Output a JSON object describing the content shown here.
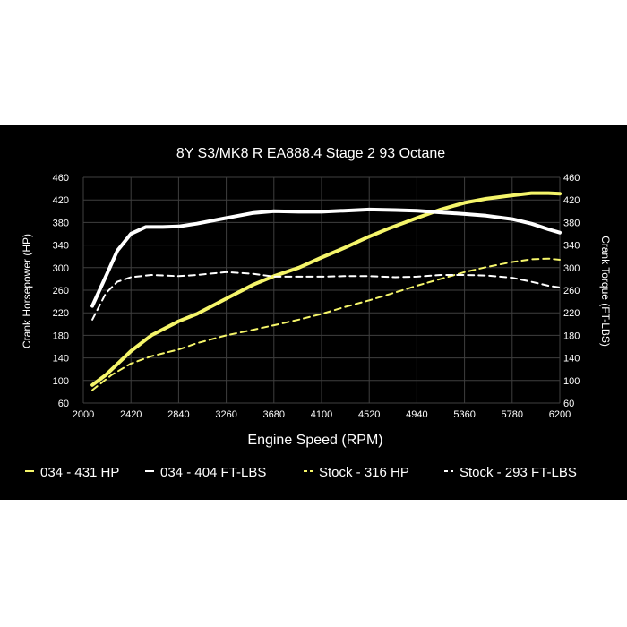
{
  "chart_data": {
    "type": "line",
    "title": "8Y S3/MK8 R EA888.4 Stage 2 93 Octane",
    "xlabel": "Engine Speed (RPM)",
    "ylabel_left": "Crank Horsepower (HP)",
    "ylabel_right": "Crank Torque (FT-LBS)",
    "xlim": [
      2000,
      6200
    ],
    "ylim": [
      60,
      460
    ],
    "x_ticks": [
      "2000",
      "2420",
      "2840",
      "3260",
      "3680",
      "4100",
      "4520",
      "4940",
      "5360",
      "5780",
      "6200"
    ],
    "y_ticks": [
      "60",
      "100",
      "140",
      "180",
      "220",
      "260",
      "300",
      "340",
      "380",
      "420",
      "460"
    ],
    "grid": true,
    "legend_position": "bottom",
    "series": [
      {
        "name": "034 - 431 HP",
        "color": "#f5f56a",
        "style": "solid",
        "points": [
          [
            2080,
            92
          ],
          [
            2200,
            110
          ],
          [
            2420,
            152
          ],
          [
            2600,
            180
          ],
          [
            2840,
            205
          ],
          [
            3000,
            218
          ],
          [
            3260,
            245
          ],
          [
            3500,
            270
          ],
          [
            3680,
            285
          ],
          [
            3900,
            300
          ],
          [
            4100,
            318
          ],
          [
            4300,
            335
          ],
          [
            4520,
            355
          ],
          [
            4700,
            370
          ],
          [
            4940,
            388
          ],
          [
            5150,
            403
          ],
          [
            5360,
            415
          ],
          [
            5550,
            422
          ],
          [
            5780,
            428
          ],
          [
            5950,
            432
          ],
          [
            6100,
            432
          ],
          [
            6200,
            431
          ]
        ]
      },
      {
        "name": "034 - 404 FT-LBS",
        "color": "#ffffff",
        "style": "solid",
        "points": [
          [
            2080,
            232
          ],
          [
            2200,
            285
          ],
          [
            2300,
            330
          ],
          [
            2420,
            360
          ],
          [
            2550,
            372
          ],
          [
            2700,
            372
          ],
          [
            2840,
            373
          ],
          [
            3000,
            378
          ],
          [
            3260,
            388
          ],
          [
            3500,
            397
          ],
          [
            3680,
            400
          ],
          [
            3900,
            399
          ],
          [
            4100,
            399
          ],
          [
            4300,
            401
          ],
          [
            4520,
            403
          ],
          [
            4750,
            402
          ],
          [
            4940,
            401
          ],
          [
            5150,
            398
          ],
          [
            5360,
            395
          ],
          [
            5550,
            392
          ],
          [
            5780,
            386
          ],
          [
            5950,
            378
          ],
          [
            6100,
            368
          ],
          [
            6200,
            362
          ]
        ]
      },
      {
        "name": "Stock - 316 HP",
        "color": "#f5f56a",
        "style": "dashed",
        "points": [
          [
            2080,
            83
          ],
          [
            2250,
            110
          ],
          [
            2420,
            130
          ],
          [
            2600,
            143
          ],
          [
            2840,
            155
          ],
          [
            3000,
            166
          ],
          [
            3260,
            180
          ],
          [
            3500,
            190
          ],
          [
            3680,
            198
          ],
          [
            3900,
            208
          ],
          [
            4100,
            218
          ],
          [
            4300,
            230
          ],
          [
            4520,
            242
          ],
          [
            4700,
            253
          ],
          [
            4940,
            268
          ],
          [
            5150,
            280
          ],
          [
            5360,
            292
          ],
          [
            5550,
            301
          ],
          [
            5780,
            310
          ],
          [
            5950,
            315
          ],
          [
            6100,
            316
          ],
          [
            6200,
            314
          ]
        ]
      },
      {
        "name": "Stock - 293 FT-LBS",
        "color": "#ffffff",
        "style": "dashed",
        "points": [
          [
            2080,
            208
          ],
          [
            2200,
            255
          ],
          [
            2300,
            275
          ],
          [
            2420,
            283
          ],
          [
            2600,
            287
          ],
          [
            2840,
            285
          ],
          [
            3000,
            287
          ],
          [
            3260,
            292
          ],
          [
            3500,
            289
          ],
          [
            3680,
            284
          ],
          [
            3900,
            284
          ],
          [
            4100,
            284
          ],
          [
            4300,
            285
          ],
          [
            4520,
            285
          ],
          [
            4750,
            283
          ],
          [
            4940,
            284
          ],
          [
            5150,
            287
          ],
          [
            5360,
            287
          ],
          [
            5550,
            286
          ],
          [
            5780,
            282
          ],
          [
            5950,
            275
          ],
          [
            6100,
            268
          ],
          [
            6200,
            265
          ]
        ]
      }
    ]
  }
}
